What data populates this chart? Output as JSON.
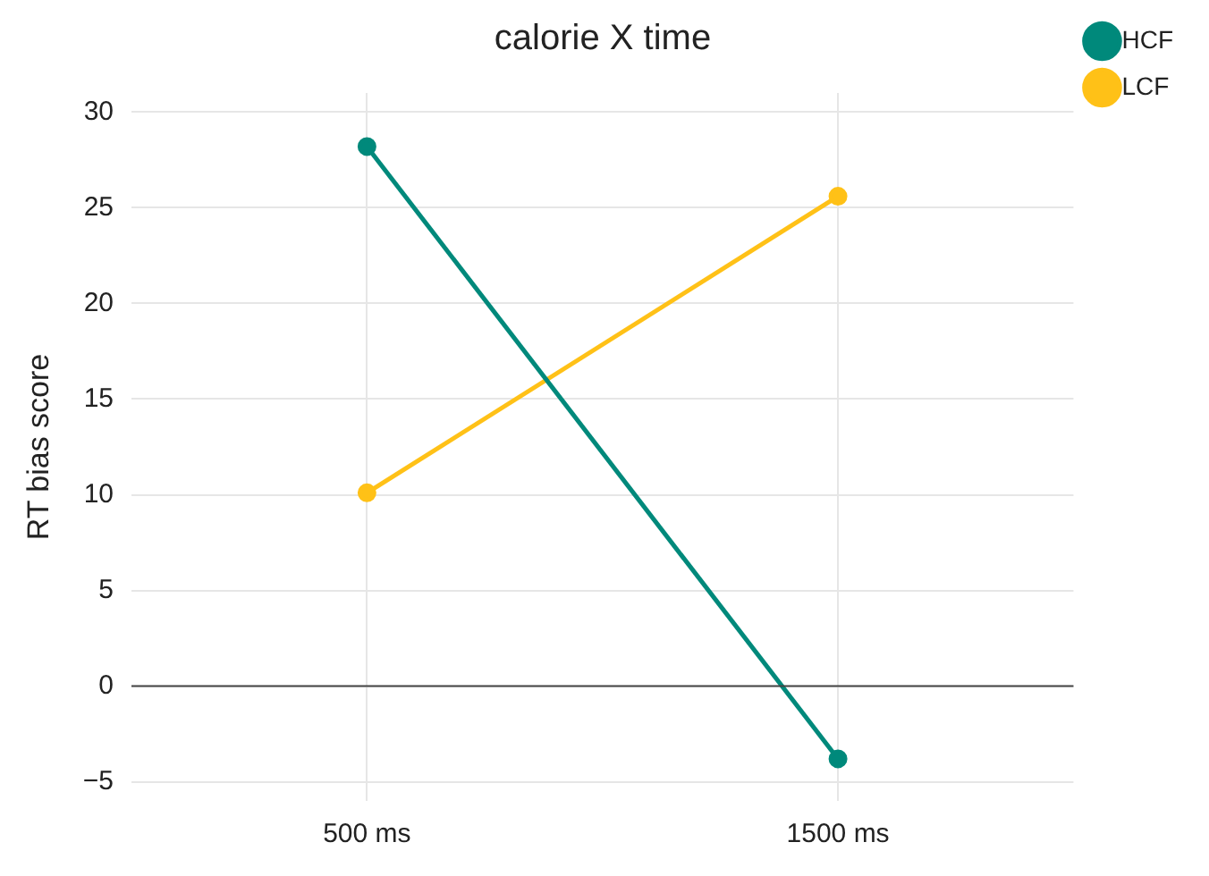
{
  "chart_data": {
    "type": "line",
    "title": "calorie X time",
    "ylabel": "RT bias score",
    "categories": [
      "500 ms",
      "1500 ms"
    ],
    "series": [
      {
        "name": "HCF",
        "color": "#00897b",
        "values": [
          28.2,
          -3.8
        ]
      },
      {
        "name": "LCF",
        "color": "#ffc117",
        "values": [
          10.1,
          25.6
        ]
      }
    ],
    "ylim": [
      -6,
      31
    ],
    "yticks": [
      -5,
      0,
      5,
      10,
      15,
      20,
      25,
      30
    ],
    "grid": true,
    "legend": "top right",
    "marker": "circle",
    "line_style": "solid",
    "ref_lines": [
      {
        "axis": "y",
        "value": 0,
        "color": "#444444"
      }
    ]
  }
}
